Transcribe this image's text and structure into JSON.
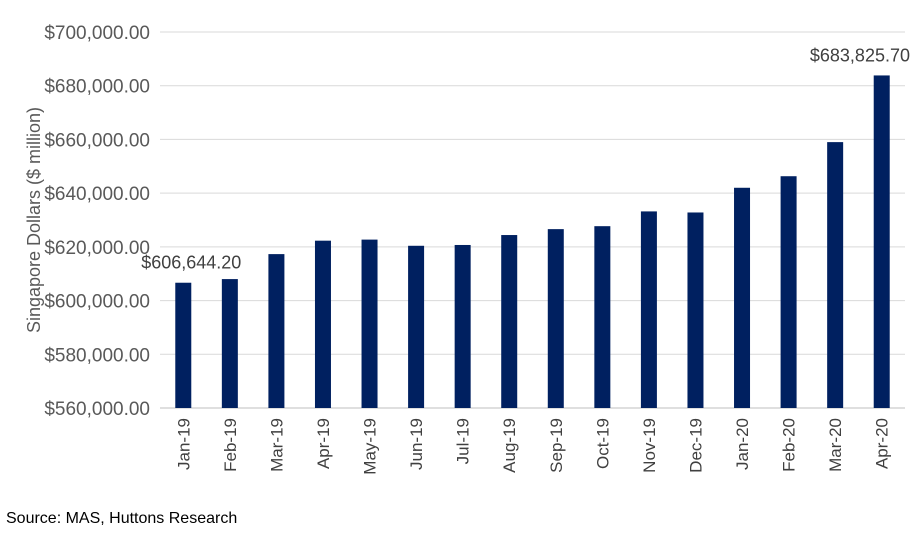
{
  "chart_data": {
    "type": "bar",
    "title": "",
    "xlabel": "",
    "ylabel": "Singapore Dollars ($ million)",
    "ylim": [
      560000,
      700000
    ],
    "y_ticks": [
      560000,
      580000,
      600000,
      620000,
      640000,
      660000,
      680000,
      700000
    ],
    "y_tick_labels": [
      "$560,000.00",
      "$580,000.00",
      "$600,000.00",
      "$620,000.00",
      "$640,000.00",
      "$660,000.00",
      "$680,000.00",
      "$700,000.00"
    ],
    "grid": true,
    "categories": [
      "Jan-19",
      "Feb-19",
      "Mar-19",
      "Apr-19",
      "May-19",
      "Jun-19",
      "Jul-19",
      "Aug-19",
      "Sep-19",
      "Oct-19",
      "Nov-19",
      "Dec-19",
      "Jan-20",
      "Feb-20",
      "Mar-20",
      "Apr-20"
    ],
    "values": [
      606644.2,
      608000,
      617300,
      622300,
      622700,
      620400,
      620700,
      624400,
      626600,
      627700,
      633200,
      632800,
      642000,
      646300,
      659000,
      683825.7
    ],
    "data_labels": [
      {
        "index": 0,
        "text": "$606,644.20"
      },
      {
        "index": 15,
        "text": "$683,825.70"
      }
    ],
    "bar_color": "#002060"
  },
  "source": "Source: MAS, Huttons Research"
}
